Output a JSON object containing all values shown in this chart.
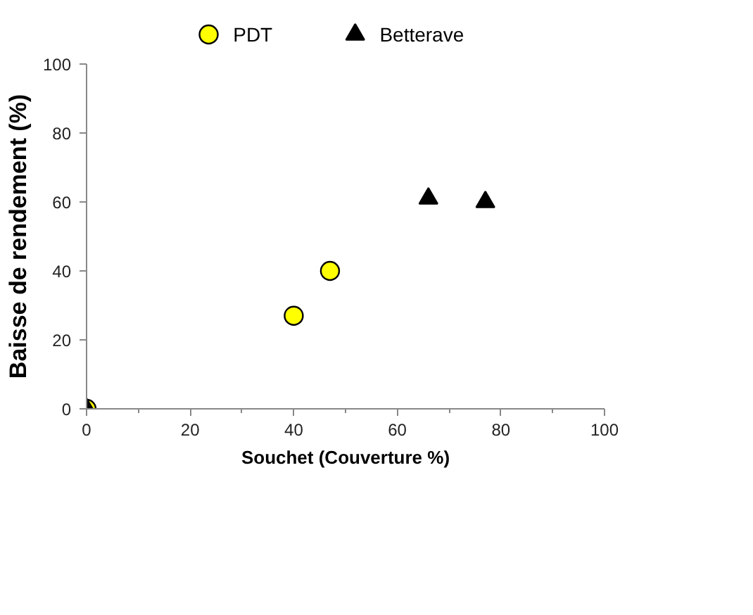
{
  "chart_data": {
    "type": "scatter",
    "xlabel": "Souchet (Couverture %)",
    "ylabel": "Baisse de rendement (%)",
    "xlim": [
      0,
      100
    ],
    "ylim": [
      0,
      100
    ],
    "xticks": [
      0,
      20,
      40,
      60,
      80,
      100
    ],
    "yticks": [
      0,
      20,
      40,
      60,
      80,
      100
    ],
    "grid": false,
    "legend": "top",
    "series": [
      {
        "name": "PDT",
        "color": "#ffff00",
        "marker": "circle",
        "x": [
          0,
          40,
          47
        ],
        "values": [
          0,
          27,
          40
        ]
      },
      {
        "name": "Betterave",
        "color": "#000000",
        "marker": "triangle",
        "x": [
          0,
          66,
          77
        ],
        "values": [
          0,
          61,
          60
        ]
      }
    ]
  }
}
